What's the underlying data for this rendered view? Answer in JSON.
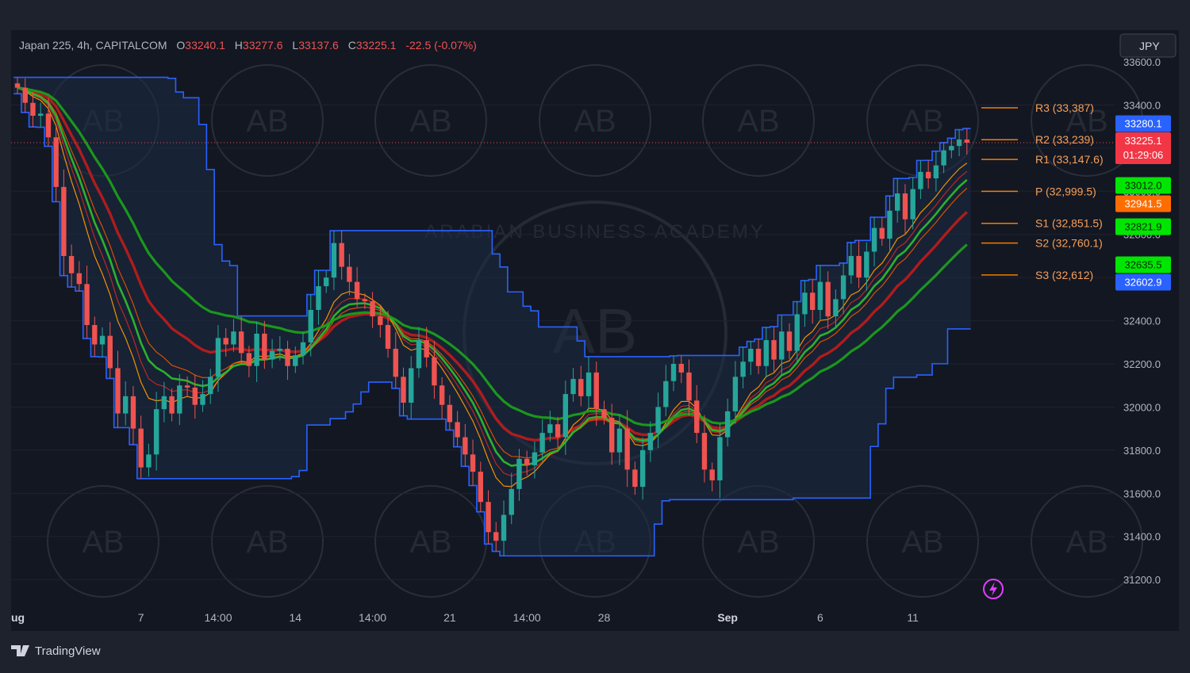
{
  "header": {
    "symbol": "Japan 225, 4h, CAPITALCOM",
    "o_label": "O",
    "o_value": "33240.1",
    "h_label": "H",
    "h_value": "33277.6",
    "l_label": "L",
    "l_value": "33137.6",
    "c_label": "C",
    "c_value": "33225.1",
    "change": "-22.5 (-0.07%)"
  },
  "currency_button": "JPY",
  "branding": {
    "tradingview": "TradingView",
    "watermark": "ARABIAN BUSINESS ACADEMY",
    "watermark_logo": "AB"
  },
  "colors": {
    "background": "#1e222d",
    "plot_bg": "#131722",
    "bull": "#26a69a",
    "bear": "#ef5350",
    "channel": "#2962ff",
    "pivot": "#f57c00",
    "ema_red": "#c62828",
    "ema_green": "#2eb82e",
    "orange": "#ff9800",
    "text": "#b2b5be",
    "price_tag": "#f23645",
    "blue_tag": "#2962ff",
    "green_tag": "#00e600",
    "orange_tag": "#ff6d00"
  },
  "chart_data": {
    "type": "candlestick",
    "y_axis": {
      "range": [
        31050,
        33600
      ],
      "ticks": [
        "33400.0",
        "33200.0",
        "33000.0",
        "32800.0",
        "32600.0",
        "32400.0",
        "32200.0",
        "32000.0",
        "31800.0",
        "31600.0",
        "31400.0",
        "31200.0"
      ],
      "top_clipped_tick": "33600.0"
    },
    "x_axis": {
      "ticks": [
        {
          "label": "ug",
          "bar": 0,
          "bold": true
        },
        {
          "label": "7",
          "bar": 16,
          "bold": false
        },
        {
          "label": "14:00",
          "bar": 26,
          "bold": false
        },
        {
          "label": "14",
          "bar": 36,
          "bold": false
        },
        {
          "label": "14:00",
          "bar": 46,
          "bold": false
        },
        {
          "label": "21",
          "bar": 56,
          "bold": false
        },
        {
          "label": "14:00",
          "bar": 66,
          "bold": false
        },
        {
          "label": "28",
          "bar": 76,
          "bold": false
        },
        {
          "label": "Sep",
          "bar": 92,
          "bold": true
        },
        {
          "label": "6",
          "bar": 104,
          "bold": false
        },
        {
          "label": "11",
          "bar": 116,
          "bold": false
        }
      ]
    },
    "bars_visible_total": 124,
    "candles_close": [
      33480,
      33410,
      33350,
      33360,
      33250,
      33020,
      32700,
      32620,
      32570,
      32380,
      32290,
      32330,
      32180,
      31970,
      32050,
      31900,
      31720,
      31780,
      31990,
      32050,
      31970,
      32100,
      32090,
      32010,
      32060,
      32140,
      32320,
      32290,
      32350,
      32250,
      32190,
      32340,
      32220,
      32260,
      32270,
      32190,
      32240,
      32300,
      32450,
      32560,
      32600,
      32760,
      32650,
      32580,
      32500,
      32490,
      32420,
      32380,
      32270,
      32140,
      32020,
      32180,
      32310,
      32230,
      32100,
      32010,
      31930,
      31860,
      31780,
      31700,
      31560,
      31420,
      31380,
      31500,
      31620,
      31760,
      31730,
      31790,
      31880,
      31920,
      31860,
      32060,
      32130,
      32050,
      32160,
      31990,
      31950,
      31790,
      31900,
      31710,
      31630,
      31800,
      31880,
      32000,
      32120,
      32200,
      32160,
      32030,
      31880,
      31710,
      31660,
      31860,
      31980,
      32140,
      32210,
      32270,
      32190,
      32310,
      32220,
      32350,
      32260,
      32430,
      32530,
      32450,
      32580,
      32420,
      32500,
      32610,
      32700,
      32600,
      32720,
      32830,
      32780,
      32910,
      32990,
      32870,
      33010,
      33090,
      33060,
      33120,
      33190,
      33210,
      33240,
      33225
    ],
    "pivots": [
      {
        "label": "R3 (33,387)",
        "value": 33387
      },
      {
        "label": "R2 (33,239)",
        "value": 33239
      },
      {
        "label": "R1 (33,147.6)",
        "value": 33147.6
      },
      {
        "label": "P (32,999.5)",
        "value": 32999.5
      },
      {
        "label": "S1 (32,851.5)",
        "value": 32851.5
      },
      {
        "label": "S2 (32,760.1)",
        "value": 32760.1
      },
      {
        "label": "S3 (32,612)",
        "value": 32612
      }
    ],
    "price_tags": [
      {
        "value": 33280.1,
        "text": "33280.1",
        "color": "blue"
      },
      {
        "value": 33225.1,
        "text": "33225.1",
        "text2": "01:29:06",
        "color": "red"
      },
      {
        "value": 33012.0,
        "text": "33012.0",
        "color": "green"
      },
      {
        "value": 32941.5,
        "text": "32941.5",
        "color": "orange"
      },
      {
        "value": 32821.9,
        "text": "32821.9",
        "color": "green"
      },
      {
        "value": 32635.5,
        "text": "32635.5",
        "color": "green"
      },
      {
        "value": 32602.9,
        "text": "32602.9",
        "color": "blue"
      }
    ]
  }
}
